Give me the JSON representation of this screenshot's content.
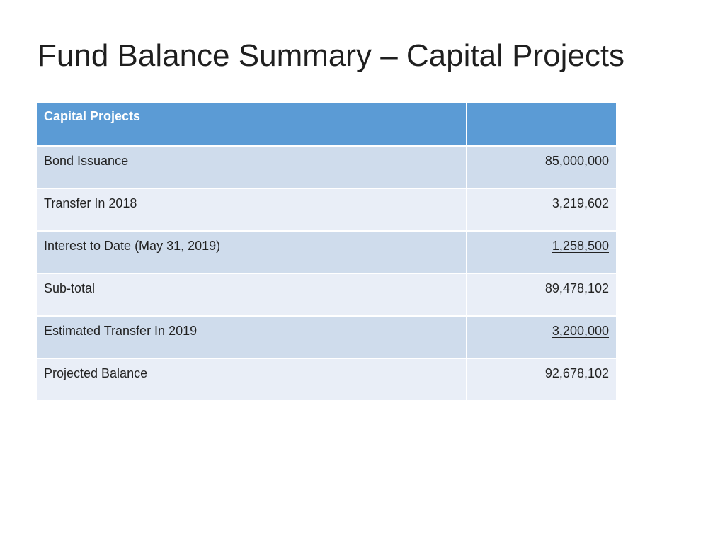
{
  "slide": {
    "title": "Fund Balance Summary – Capital Projects"
  },
  "table": {
    "header": {
      "label": "Capital Projects",
      "amount": ""
    },
    "rows": [
      {
        "label": "Bond Issuance",
        "amount": "85,000,000",
        "underlined": false
      },
      {
        "label": "Transfer In 2018",
        "amount": "3,219,602",
        "underlined": false
      },
      {
        "label": "Interest to Date (May 31, 2019)",
        "amount": "1,258,500",
        "underlined": true
      },
      {
        "label": "Sub-total",
        "amount": "89,478,102",
        "underlined": false
      },
      {
        "label": "Estimated Transfer In 2019",
        "amount": "3,200,000",
        "underlined": true
      },
      {
        "label": "Projected Balance",
        "amount": "92,678,102",
        "underlined": false
      }
    ]
  },
  "colors": {
    "header_fill": "#5b9bd5",
    "row_band_dark": "#cfdcec",
    "row_band_light": "#e9eef7"
  }
}
